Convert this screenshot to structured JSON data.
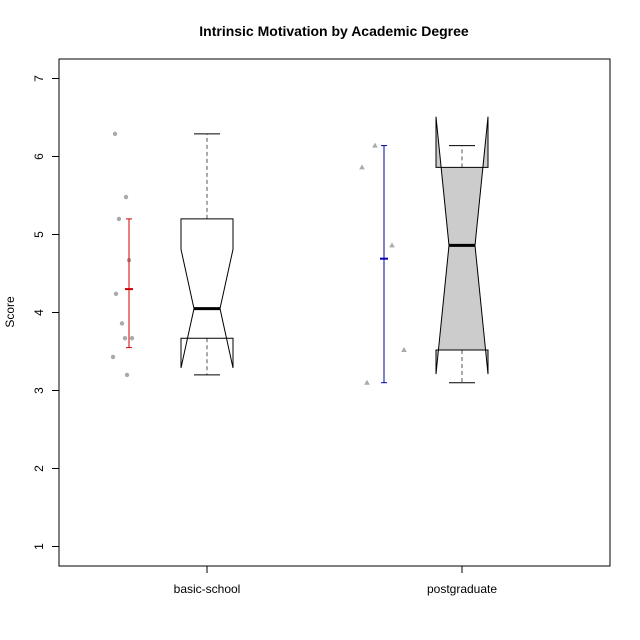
{
  "chart_data": {
    "type": "boxplot",
    "title": "Intrinsic Motivation by Academic Degree",
    "xlabel": "",
    "ylabel": "Score",
    "ylim": [
      0.75,
      7.25
    ],
    "yticks": [
      "1",
      "2",
      "3",
      "4",
      "5",
      "6",
      "7"
    ],
    "categories": [
      "basic-school",
      "postgraduate"
    ],
    "groups": [
      {
        "category": "basic-school",
        "box": {
          "min": 3.2,
          "q1": 3.67,
          "median": 4.05,
          "q3": 5.2,
          "max": 6.29,
          "notch_low": 3.29,
          "notch_high": 4.81
        },
        "box_fill": "#ffffff",
        "points": [
          6.29,
          5.48,
          5.2,
          4.67,
          4.24,
          3.86,
          3.67,
          3.67,
          3.43,
          3.2
        ],
        "point_marker": "circle",
        "mean": 4.3,
        "error_bar": [
          3.55,
          5.2
        ],
        "error_color": "#d00000"
      },
      {
        "category": "postgraduate",
        "box": {
          "min": 3.1,
          "q1": 3.52,
          "median": 4.86,
          "q3": 5.86,
          "max": 6.14,
          "notch_low": 3.21,
          "notch_high": 6.51
        },
        "box_fill": "#cccccc",
        "points": [
          6.14,
          5.86,
          4.86,
          3.52,
          3.1
        ],
        "point_marker": "triangle",
        "mean": 4.69,
        "error_bar": [
          3.1,
          6.14
        ],
        "error_color": "#0000b0"
      }
    ]
  }
}
